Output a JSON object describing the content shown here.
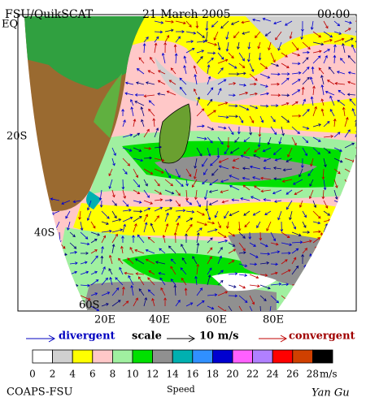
{
  "header": {
    "product": "FSU/QuikSCAT",
    "date": "21 March 2005",
    "time": "00:00"
  },
  "map": {
    "lat_labels": [
      "EQ",
      "20S",
      "40S",
      "60S"
    ],
    "lon_labels": [
      "20E",
      "40E",
      "60E",
      "80E"
    ]
  },
  "legend": {
    "divergent": "divergent",
    "scale": "scale",
    "scale_value": "10 m/s",
    "convergent": "convergent"
  },
  "colorbar": {
    "title": "Speed",
    "ticks": [
      0,
      2,
      4,
      6,
      8,
      10,
      12,
      14,
      16,
      18,
      20,
      22,
      24,
      26,
      28
    ],
    "unit": "m/s",
    "colors": [
      "#ffffff",
      "#d0d0d0",
      "#ffff00",
      "#ffc8c8",
      "#a0f0a0",
      "#00e000",
      "#909090",
      "#00b0b0",
      "#3090ff",
      "#0000d0",
      "#ff60ff",
      "#b080ff",
      "#ff0000",
      "#d04000",
      "#000000"
    ]
  },
  "footer": {
    "left": "COAPS-FSU",
    "right": "Yan Gu"
  }
}
